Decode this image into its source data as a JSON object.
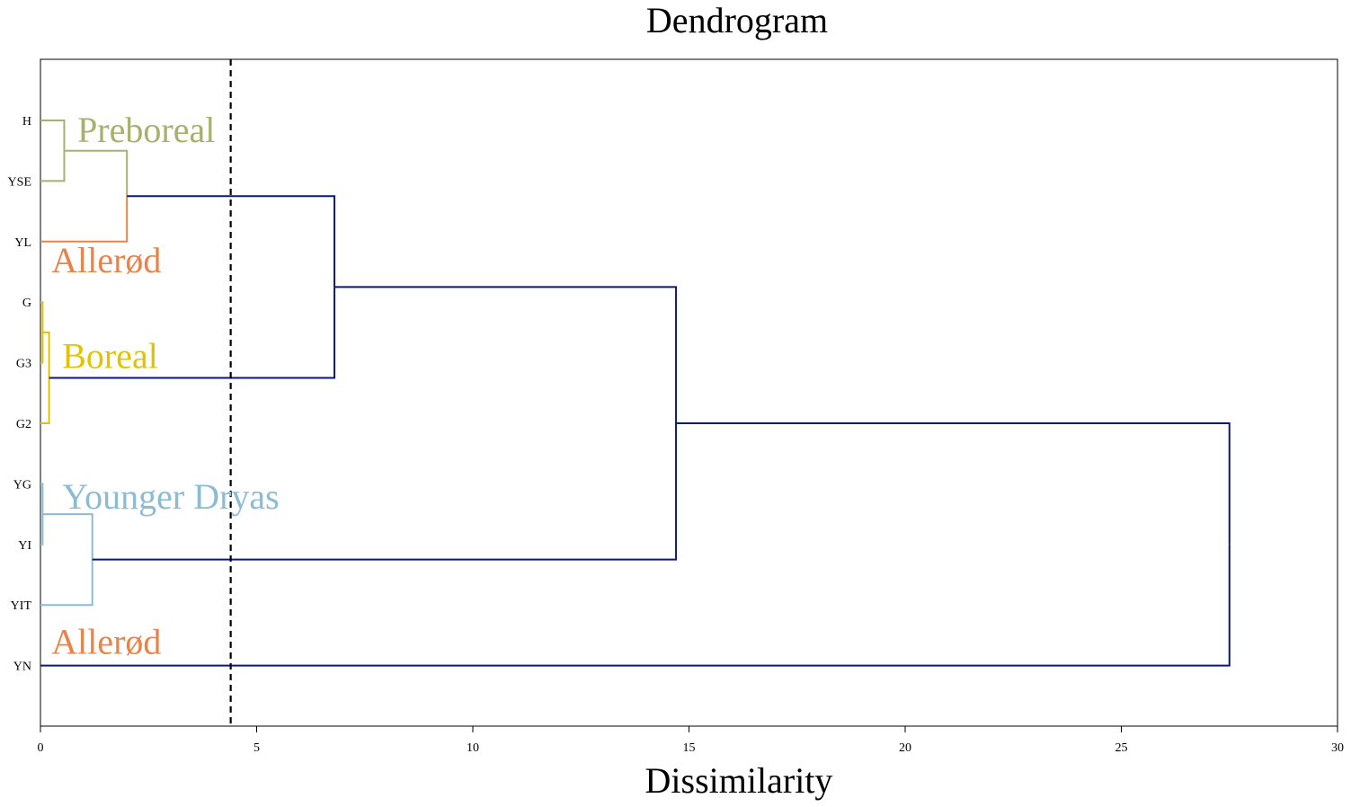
{
  "chart_data": {
    "type": "dendrogram",
    "title": "Dendrogram",
    "xlabel": "Dissimilarity",
    "ylabel": "",
    "xlim": [
      0,
      30
    ],
    "xticks": [
      0,
      5,
      10,
      15,
      20,
      25,
      30
    ],
    "grid": false,
    "leaves": [
      "H",
      "YSE",
      "YL",
      "G",
      "G3",
      "G2",
      "YG",
      "YI",
      "YIT",
      "YN"
    ],
    "merges": [
      {
        "id": "P",
        "children": [
          "H",
          "YSE"
        ],
        "height": 0.55,
        "color": "#a8b06e"
      },
      {
        "id": "PA",
        "children": [
          "P",
          "YL"
        ],
        "height": 2.0,
        "color": "#a8b06e",
        "second_color": "#e8844a"
      },
      {
        "id": "B1",
        "children": [
          "G",
          "G3"
        ],
        "height": 0.05,
        "color": "#e0c400"
      },
      {
        "id": "B",
        "children": [
          "B1",
          "G2"
        ],
        "height": 0.2,
        "color": "#e0c400"
      },
      {
        "id": "Y1",
        "children": [
          "YG",
          "YI"
        ],
        "height": 0.05,
        "color": "#8bbcd4"
      },
      {
        "id": "Y",
        "children": [
          "Y1",
          "YIT"
        ],
        "height": 1.2,
        "color": "#8bbcd4"
      },
      {
        "id": "C1",
        "children": [
          "PA",
          "B"
        ],
        "height": 6.8,
        "color": "#0a1a6e"
      },
      {
        "id": "C2",
        "children": [
          "C1",
          "Y"
        ],
        "height": 14.7,
        "color": "#0a1a6e"
      },
      {
        "id": "C3",
        "children": [
          "C2",
          "YN"
        ],
        "height": 27.5,
        "color": "#0a1a6e"
      }
    ],
    "yn_color": "#0a1a6e",
    "cutoff": 4.4,
    "cluster_labels": [
      {
        "text": "Preboreal",
        "color": "#a8b06e",
        "x": 0.75,
        "leaf": 0.15
      },
      {
        "text": "Allerød",
        "color": "#e8844a",
        "x": 0.15,
        "leaf": 2.3
      },
      {
        "text": "Boreal",
        "color": "#e0c400",
        "x": 0.4,
        "leaf": 3.88
      },
      {
        "text": "Younger Dryas",
        "color": "#8bbcd4",
        "x": 0.4,
        "leaf": 6.2
      },
      {
        "text": "Allerød",
        "color": "#e8844a",
        "x": 0.15,
        "leaf": 8.6
      }
    ]
  }
}
